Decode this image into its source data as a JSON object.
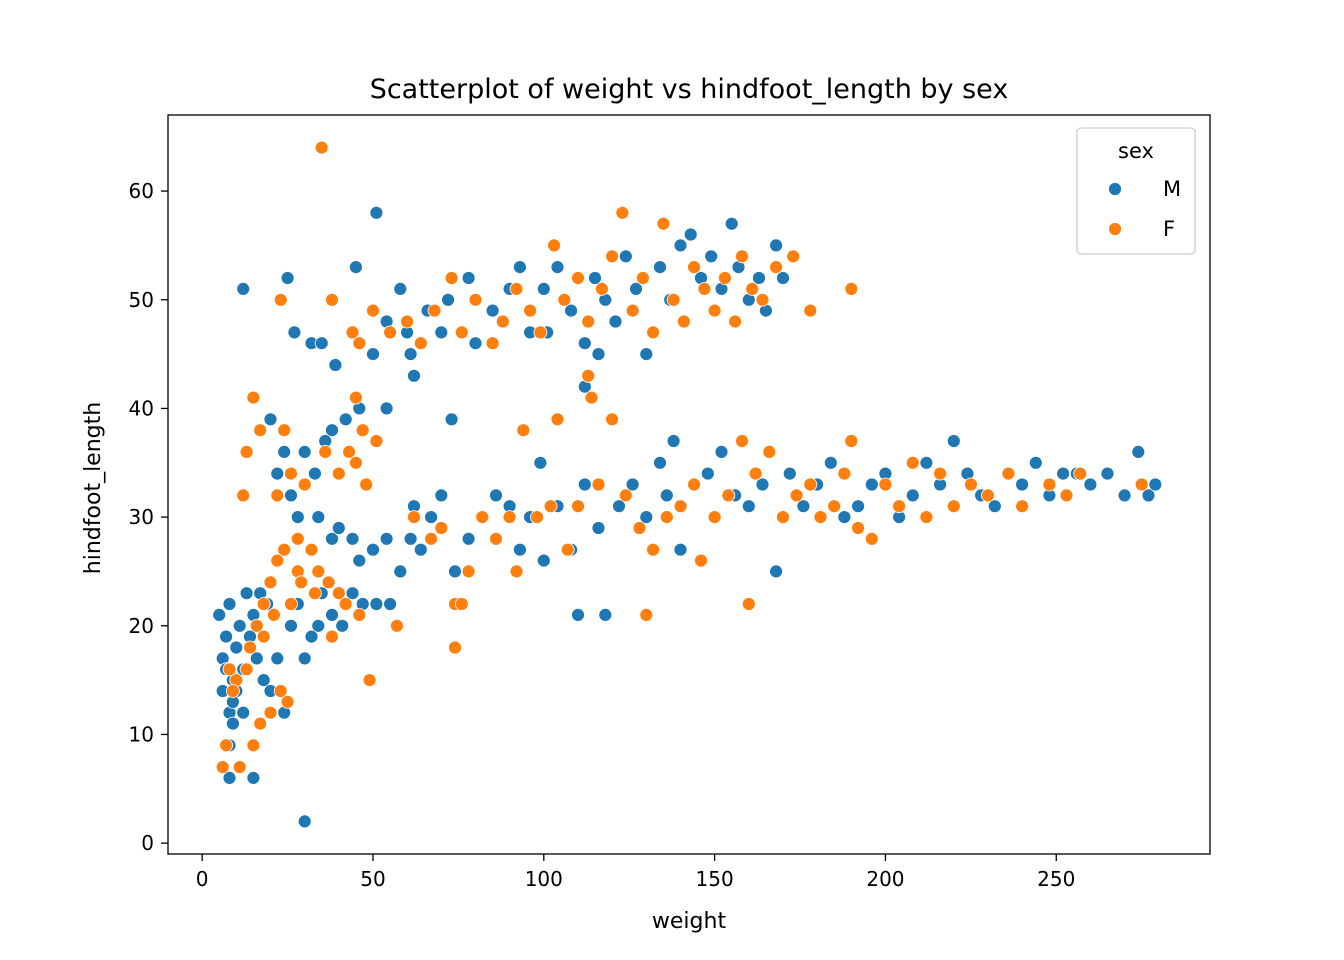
{
  "chart_data": {
    "type": "scatter",
    "title": "Scatterplot of weight vs hindfoot_length by sex",
    "xlabel": "weight",
    "ylabel": "hindfoot_length",
    "xlim": [
      -10,
      295
    ],
    "ylim": [
      -1,
      67
    ],
    "xticks": [
      0,
      50,
      100,
      150,
      200,
      250
    ],
    "yticks": [
      0,
      10,
      20,
      30,
      40,
      50,
      60
    ],
    "grid": false,
    "legend": {
      "title": "sex",
      "position": "top-right"
    },
    "series": [
      {
        "name": "M",
        "color": "#1f77b4",
        "points": [
          [
            12,
            51
          ],
          [
            25,
            52
          ],
          [
            27,
            47
          ],
          [
            32,
            46
          ],
          [
            35,
            46
          ],
          [
            39,
            44
          ],
          [
            45,
            53
          ],
          [
            51,
            58
          ],
          [
            50,
            45
          ],
          [
            54,
            48
          ],
          [
            58,
            51
          ],
          [
            61,
            45
          ],
          [
            62,
            43
          ],
          [
            60,
            47
          ],
          [
            66,
            49
          ],
          [
            70,
            47
          ],
          [
            72,
            50
          ],
          [
            78,
            52
          ],
          [
            80,
            46
          ],
          [
            85,
            49
          ],
          [
            90,
            51
          ],
          [
            93,
            53
          ],
          [
            96,
            47
          ],
          [
            100,
            51
          ],
          [
            104,
            53
          ],
          [
            108,
            49
          ],
          [
            112,
            46
          ],
          [
            115,
            52
          ],
          [
            118,
            50
          ],
          [
            121,
            48
          ],
          [
            124,
            54
          ],
          [
            127,
            51
          ],
          [
            130,
            45
          ],
          [
            134,
            53
          ],
          [
            137,
            50
          ],
          [
            140,
            55
          ],
          [
            143,
            56
          ],
          [
            146,
            52
          ],
          [
            149,
            54
          ],
          [
            152,
            51
          ],
          [
            155,
            57
          ],
          [
            157,
            53
          ],
          [
            160,
            50
          ],
          [
            163,
            52
          ],
          [
            165,
            49
          ],
          [
            168,
            55
          ],
          [
            170,
            52
          ],
          [
            116,
            45
          ],
          [
            101,
            47
          ],
          [
            112,
            42
          ],
          [
            73,
            39
          ],
          [
            54,
            40
          ],
          [
            46,
            40
          ],
          [
            42,
            39
          ],
          [
            38,
            38
          ],
          [
            36,
            37
          ],
          [
            30,
            36
          ],
          [
            33,
            34
          ],
          [
            22,
            34
          ],
          [
            24,
            36
          ],
          [
            20,
            39
          ],
          [
            26,
            32
          ],
          [
            28,
            30
          ],
          [
            34,
            30
          ],
          [
            38,
            28
          ],
          [
            40,
            29
          ],
          [
            44,
            28
          ],
          [
            46,
            26
          ],
          [
            50,
            27
          ],
          [
            54,
            28
          ],
          [
            58,
            25
          ],
          [
            61,
            28
          ],
          [
            64,
            27
          ],
          [
            62,
            31
          ],
          [
            67,
            30
          ],
          [
            70,
            32
          ],
          [
            74,
            25
          ],
          [
            78,
            28
          ],
          [
            82,
            30
          ],
          [
            86,
            32
          ],
          [
            90,
            31
          ],
          [
            93,
            27
          ],
          [
            96,
            30
          ],
          [
            99,
            35
          ],
          [
            100,
            26
          ],
          [
            104,
            31
          ],
          [
            108,
            27
          ],
          [
            110,
            21
          ],
          [
            112,
            33
          ],
          [
            116,
            29
          ],
          [
            118,
            21
          ],
          [
            122,
            31
          ],
          [
            126,
            33
          ],
          [
            130,
            30
          ],
          [
            134,
            35
          ],
          [
            136,
            32
          ],
          [
            138,
            37
          ],
          [
            140,
            27
          ],
          [
            144,
            33
          ],
          [
            148,
            34
          ],
          [
            152,
            36
          ],
          [
            156,
            32
          ],
          [
            160,
            31
          ],
          [
            164,
            33
          ],
          [
            168,
            25
          ],
          [
            172,
            34
          ],
          [
            176,
            31
          ],
          [
            180,
            33
          ],
          [
            184,
            35
          ],
          [
            188,
            30
          ],
          [
            192,
            31
          ],
          [
            196,
            33
          ],
          [
            200,
            34
          ],
          [
            204,
            30
          ],
          [
            208,
            32
          ],
          [
            212,
            35
          ],
          [
            216,
            33
          ],
          [
            220,
            37
          ],
          [
            224,
            34
          ],
          [
            228,
            32
          ],
          [
            232,
            31
          ],
          [
            236,
            34
          ],
          [
            240,
            33
          ],
          [
            244,
            35
          ],
          [
            248,
            32
          ],
          [
            252,
            34
          ],
          [
            256,
            34
          ],
          [
            260,
            33
          ],
          [
            265,
            34
          ],
          [
            270,
            32
          ],
          [
            274,
            36
          ],
          [
            277,
            32
          ],
          [
            279,
            33
          ],
          [
            5,
            21
          ],
          [
            6,
            17
          ],
          [
            7,
            19
          ],
          [
            8,
            22
          ],
          [
            9,
            15
          ],
          [
            10,
            18
          ],
          [
            11,
            20
          ],
          [
            12,
            16
          ],
          [
            13,
            23
          ],
          [
            14,
            19
          ],
          [
            15,
            21
          ],
          [
            16,
            17
          ],
          [
            17,
            23
          ],
          [
            18,
            15
          ],
          [
            19,
            22
          ],
          [
            8,
            12
          ],
          [
            9,
            11
          ],
          [
            8,
            9
          ],
          [
            8,
            6
          ],
          [
            10,
            14
          ],
          [
            12,
            12
          ],
          [
            15,
            6
          ],
          [
            20,
            14
          ],
          [
            24,
            12
          ],
          [
            30,
            2
          ],
          [
            22,
            17
          ],
          [
            26,
            20
          ],
          [
            28,
            22
          ],
          [
            32,
            19
          ],
          [
            35,
            23
          ],
          [
            38,
            21
          ],
          [
            41,
            20
          ],
          [
            44,
            23
          ],
          [
            47,
            22
          ],
          [
            51,
            22
          ],
          [
            55,
            22
          ],
          [
            30,
            17
          ],
          [
            34,
            20
          ],
          [
            6,
            14
          ],
          [
            7,
            16
          ],
          [
            9,
            13
          ]
        ]
      },
      {
        "name": "F",
        "color": "#ff7f0e",
        "points": [
          [
            35,
            64
          ],
          [
            23,
            50
          ],
          [
            38,
            50
          ],
          [
            44,
            47
          ],
          [
            46,
            46
          ],
          [
            50,
            49
          ],
          [
            55,
            47
          ],
          [
            60,
            48
          ],
          [
            64,
            46
          ],
          [
            68,
            49
          ],
          [
            73,
            52
          ],
          [
            76,
            47
          ],
          [
            80,
            50
          ],
          [
            85,
            46
          ],
          [
            88,
            48
          ],
          [
            92,
            51
          ],
          [
            96,
            49
          ],
          [
            99,
            47
          ],
          [
            103,
            55
          ],
          [
            106,
            50
          ],
          [
            110,
            52
          ],
          [
            113,
            48
          ],
          [
            117,
            51
          ],
          [
            120,
            54
          ],
          [
            123,
            58
          ],
          [
            126,
            49
          ],
          [
            129,
            52
          ],
          [
            132,
            47
          ],
          [
            135,
            57
          ],
          [
            138,
            50
          ],
          [
            141,
            48
          ],
          [
            144,
            53
          ],
          [
            147,
            51
          ],
          [
            150,
            49
          ],
          [
            153,
            52
          ],
          [
            156,
            48
          ],
          [
            158,
            54
          ],
          [
            161,
            51
          ],
          [
            164,
            50
          ],
          [
            168,
            53
          ],
          [
            173,
            54
          ],
          [
            178,
            49
          ],
          [
            190,
            51
          ],
          [
            45,
            41
          ],
          [
            51,
            37
          ],
          [
            47,
            38
          ],
          [
            43,
            36
          ],
          [
            48,
            33
          ],
          [
            45,
            35
          ],
          [
            40,
            34
          ],
          [
            36,
            36
          ],
          [
            30,
            33
          ],
          [
            26,
            34
          ],
          [
            24,
            38
          ],
          [
            22,
            32
          ],
          [
            17,
            38
          ],
          [
            15,
            41
          ],
          [
            13,
            36
          ],
          [
            12,
            32
          ],
          [
            28,
            28
          ],
          [
            32,
            27
          ],
          [
            34,
            25
          ],
          [
            37,
            24
          ],
          [
            40,
            23
          ],
          [
            42,
            22
          ],
          [
            46,
            21
          ],
          [
            49,
            15
          ],
          [
            57,
            20
          ],
          [
            28,
            25
          ],
          [
            24,
            27
          ],
          [
            22,
            26
          ],
          [
            20,
            24
          ],
          [
            18,
            22
          ],
          [
            16,
            20
          ],
          [
            14,
            18
          ],
          [
            13,
            16
          ],
          [
            10,
            15
          ],
          [
            9,
            14
          ],
          [
            8,
            16
          ],
          [
            7,
            9
          ],
          [
            6,
            7
          ],
          [
            11,
            7
          ],
          [
            15,
            9
          ],
          [
            17,
            11
          ],
          [
            20,
            12
          ],
          [
            23,
            14
          ],
          [
            25,
            13
          ],
          [
            18,
            19
          ],
          [
            21,
            21
          ],
          [
            26,
            22
          ],
          [
            29,
            24
          ],
          [
            33,
            23
          ],
          [
            38,
            19
          ],
          [
            62,
            30
          ],
          [
            67,
            28
          ],
          [
            70,
            29
          ],
          [
            74,
            22
          ],
          [
            76,
            22
          ],
          [
            74,
            18
          ],
          [
            78,
            25
          ],
          [
            82,
            30
          ],
          [
            86,
            28
          ],
          [
            90,
            30
          ],
          [
            92,
            25
          ],
          [
            94,
            38
          ],
          [
            98,
            30
          ],
          [
            102,
            31
          ],
          [
            104,
            39
          ],
          [
            107,
            27
          ],
          [
            110,
            31
          ],
          [
            113,
            43
          ],
          [
            114,
            41
          ],
          [
            116,
            33
          ],
          [
            120,
            39
          ],
          [
            124,
            32
          ],
          [
            128,
            29
          ],
          [
            130,
            21
          ],
          [
            132,
            27
          ],
          [
            136,
            30
          ],
          [
            140,
            31
          ],
          [
            144,
            33
          ],
          [
            146,
            26
          ],
          [
            150,
            30
          ],
          [
            154,
            32
          ],
          [
            158,
            37
          ],
          [
            160,
            22
          ],
          [
            162,
            34
          ],
          [
            166,
            36
          ],
          [
            170,
            30
          ],
          [
            174,
            32
          ],
          [
            178,
            33
          ],
          [
            181,
            30
          ],
          [
            185,
            31
          ],
          [
            188,
            34
          ],
          [
            190,
            37
          ],
          [
            192,
            29
          ],
          [
            196,
            28
          ],
          [
            200,
            33
          ],
          [
            204,
            31
          ],
          [
            208,
            35
          ],
          [
            212,
            30
          ],
          [
            216,
            34
          ],
          [
            220,
            31
          ],
          [
            225,
            33
          ],
          [
            230,
            32
          ],
          [
            236,
            34
          ],
          [
            240,
            31
          ],
          [
            248,
            33
          ],
          [
            253,
            32
          ],
          [
            257,
            34
          ],
          [
            275,
            33
          ]
        ]
      }
    ]
  }
}
